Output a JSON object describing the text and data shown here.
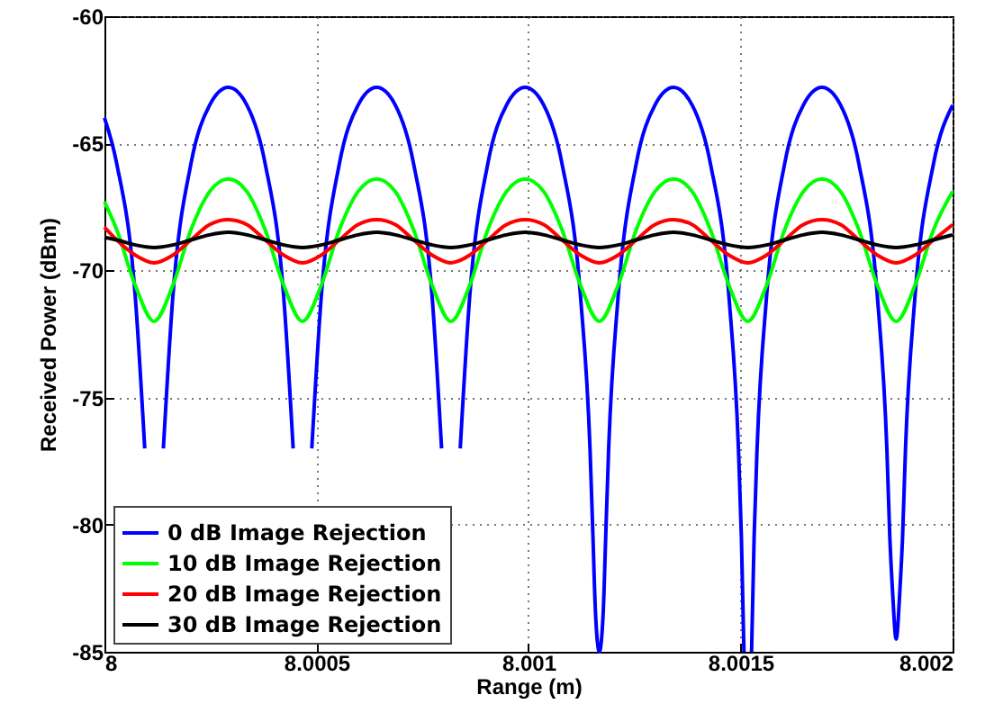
{
  "chart_data": {
    "type": "line",
    "xlabel": "Range (m)",
    "ylabel": "Received Power (dBm)",
    "xlim": [
      8,
      8.002
    ],
    "xticks": [
      8,
      8.0005,
      8.001,
      8.0015,
      8.002
    ],
    "ylim": [
      -85,
      -60
    ],
    "yticks": [
      -85,
      -80,
      -75,
      -70,
      -65,
      -60
    ],
    "grid": true,
    "legend": "bottom left",
    "x": [
      8,
      8.000029,
      8.000073,
      8.000117,
      8.000161,
      8.000204,
      8.000248,
      8.000292,
      8.000336,
      8.000379,
      8.000423,
      8.000467,
      8.000511,
      8.000554,
      8.000598,
      8.000642,
      8.000686,
      8.000729,
      8.000773,
      8.000817,
      8.000861,
      8.000904,
      8.000948,
      8.000992,
      8.001036,
      8.001079,
      8.001123,
      8.001167,
      8.001211,
      8.001254,
      8.001298,
      8.001342,
      8.001386,
      8.001429,
      8.001473,
      8.001517,
      8.001561,
      8.001604,
      8.001648,
      8.001692,
      8.001736,
      8.001779,
      8.001823,
      8.001867,
      8.001911,
      8.001955,
      8.002
    ],
    "series": [
      {
        "name": "0 dB Image Rejection",
        "color": "#0000ff",
        "x": [
          8,
          8.000029,
          8.000073,
          8.000095,
          8.000102,
          8.000108,
          8.000117,
          8.000126,
          8.000132,
          8.000139,
          8.000161,
          8.000204,
          8.000248,
          8.000292,
          8.000336,
          8.000379,
          8.000423,
          8.000445,
          8.000452,
          8.000458,
          8.000467,
          8.000476,
          8.000482,
          8.000489,
          8.000511,
          8.000554,
          8.000598,
          8.000642,
          8.000686,
          8.000729,
          8.000773,
          8.000795,
          8.000802,
          8.000808,
          8.000817,
          8.000826,
          8.000832,
          8.000839,
          8.000861,
          8.000904,
          8.000948,
          8.000992,
          8.001036,
          8.001079,
          8.001123,
          8.001145,
          8.001152,
          8.001158,
          8.001167,
          8.001176,
          8.001182,
          8.001189,
          8.001211,
          8.001254,
          8.001298,
          8.001342,
          8.001386,
          8.001429,
          8.001473,
          8.001495,
          8.001502,
          8.001508,
          8.001517,
          8.001526,
          8.001532,
          8.001539,
          8.001561,
          8.001604,
          8.001648,
          8.001692,
          8.001736,
          8.001779,
          8.001823,
          8.001845,
          8.001852,
          8.001858,
          8.001867,
          8.001876,
          8.001882,
          8.001889,
          8.001911,
          8.001955,
          8.002
        ],
        "values": [
          -64.0,
          -65.8,
          -71.1,
          -77.0,
          null,
          null,
          null,
          null,
          null,
          -77.0,
          -71.1,
          -65.8,
          -63.5,
          -62.8,
          -63.5,
          -65.8,
          -71.1,
          -77.0,
          null,
          null,
          null,
          null,
          null,
          -77.0,
          -71.1,
          -65.8,
          -63.5,
          -62.8,
          -63.5,
          -65.8,
          -71.1,
          -77.0,
          null,
          null,
          null,
          null,
          null,
          -77.0,
          -71.1,
          -65.8,
          -63.5,
          -62.8,
          -63.5,
          -65.8,
          -71.1,
          -77.0,
          -80.5,
          -83.5,
          -85.0,
          -83.5,
          -80.5,
          -77.0,
          -71.1,
          -65.8,
          -63.5,
          -62.8,
          -63.5,
          -65.8,
          -71.1,
          -77.0,
          -80.5,
          -85.0,
          null,
          -85.0,
          -80.5,
          -77.0,
          -71.1,
          -65.8,
          -63.5,
          -62.8,
          -63.5,
          -65.8,
          -71.1,
          -77.0,
          -80.5,
          -82.5,
          -84.5,
          -82.5,
          -80.5,
          -77.0,
          -71.1,
          -65.8,
          -63.5
        ]
      },
      {
        "name": "10 dB Image Rejection",
        "color": "#00ff00",
        "values": [
          -67.3,
          -68.4,
          -70.6,
          -72.0,
          -70.6,
          -68.4,
          -66.9,
          -66.4,
          -66.9,
          -68.4,
          -70.6,
          -72.0,
          -70.6,
          -68.4,
          -66.9,
          -66.4,
          -66.9,
          -68.4,
          -70.6,
          -72.0,
          -70.6,
          -68.4,
          -66.9,
          -66.4,
          -66.9,
          -68.4,
          -70.6,
          -72.0,
          -70.6,
          -68.4,
          -66.9,
          -66.4,
          -66.9,
          -68.4,
          -70.6,
          -72.0,
          -70.6,
          -68.4,
          -66.9,
          -66.4,
          -66.9,
          -68.4,
          -70.6,
          -72.0,
          -70.6,
          -68.4,
          -66.9
        ]
      },
      {
        "name": "20 dB Image Rejection",
        "color": "#ff0000",
        "values": [
          -68.3,
          -68.8,
          -69.4,
          -69.7,
          -69.4,
          -68.8,
          -68.2,
          -68.0,
          -68.2,
          -68.8,
          -69.4,
          -69.7,
          -69.4,
          -68.8,
          -68.2,
          -68.0,
          -68.2,
          -68.8,
          -69.4,
          -69.7,
          -69.4,
          -68.8,
          -68.2,
          -68.0,
          -68.2,
          -68.8,
          -69.4,
          -69.7,
          -69.4,
          -68.8,
          -68.2,
          -68.0,
          -68.2,
          -68.8,
          -69.4,
          -69.7,
          -69.4,
          -68.8,
          -68.2,
          -68.0,
          -68.2,
          -68.8,
          -69.4,
          -69.7,
          -69.4,
          -68.8,
          -68.2
        ]
      },
      {
        "name": "30 dB Image Rejection",
        "color": "#000000",
        "values": [
          -68.7,
          -68.8,
          -69.0,
          -69.1,
          -69.0,
          -68.8,
          -68.6,
          -68.5,
          -68.6,
          -68.8,
          -69.0,
          -69.1,
          -69.0,
          -68.8,
          -68.6,
          -68.5,
          -68.6,
          -68.8,
          -69.0,
          -69.1,
          -69.0,
          -68.8,
          -68.6,
          -68.5,
          -68.6,
          -68.8,
          -69.0,
          -69.1,
          -69.0,
          -68.8,
          -68.6,
          -68.5,
          -68.6,
          -68.8,
          -69.0,
          -69.1,
          -69.0,
          -68.8,
          -68.6,
          -68.5,
          -68.6,
          -68.8,
          -69.0,
          -69.1,
          -69.0,
          -68.8,
          -68.6
        ]
      }
    ]
  }
}
